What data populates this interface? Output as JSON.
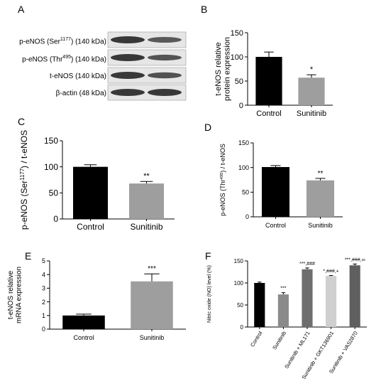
{
  "panel_labels": [
    "A",
    "B",
    "C",
    "D",
    "E",
    "F"
  ],
  "blot": {
    "rows": [
      {
        "pre": "p-eNOS (Ser",
        "sup": "1177",
        "post": ") (140 kDa)"
      },
      {
        "pre": "p-eNOS (Thr",
        "sup": "495",
        "post": ") (140 kDa)"
      },
      {
        "pre": "t-eNOS (140 kDa)",
        "sup": "",
        "post": ""
      },
      {
        "pre": "β-actin (48 kDa)",
        "sup": "",
        "post": ""
      }
    ],
    "band_intensity": [
      [
        1.0,
        0.6
      ],
      [
        1.0,
        0.65
      ],
      [
        1.0,
        0.7
      ],
      [
        1.0,
        1.0
      ]
    ]
  },
  "chart_data": [
    {
      "id": "B",
      "type": "bar",
      "categories": [
        "Control",
        "Sunitinib"
      ],
      "values": [
        100,
        57
      ],
      "errors": [
        10,
        6
      ],
      "significance": [
        "",
        "*"
      ],
      "ylabel": "t-eNOS relative protein expression",
      "ylabel_lines": [
        "t-eNOS relative",
        "protein expression"
      ],
      "ylim": [
        0,
        150
      ],
      "yticks": [
        "0",
        "50",
        "100",
        "150"
      ],
      "colors": [
        "#000000",
        "#9e9e9e"
      ]
    },
    {
      "id": "C",
      "type": "bar",
      "categories": [
        "Control",
        "Sunitinib"
      ],
      "values": [
        100,
        68
      ],
      "errors": [
        4,
        4
      ],
      "significance": [
        "",
        "**"
      ],
      "ylabel": "p-eNOS (Ser1177) / t-eNOS",
      "ylabel_parts": {
        "pre": "p-eNOS (Ser",
        "sup": "1177",
        "post": ") / t-eNOS"
      },
      "ylim": [
        0,
        150
      ],
      "yticks": [
        "0",
        "50",
        "100",
        "150"
      ],
      "colors": [
        "#000000",
        "#9e9e9e"
      ]
    },
    {
      "id": "D",
      "type": "bar",
      "categories": [
        "Control",
        "Sunitinib"
      ],
      "values": [
        101,
        74
      ],
      "errors": [
        3,
        4
      ],
      "significance": [
        "",
        "**"
      ],
      "ylabel": "p-eNOS (Thr495) / t-eNOS",
      "ylabel_parts": {
        "pre": "p-eNOS (Thr",
        "sup": "495",
        "post": ") / t-eNOS"
      },
      "ylim": [
        0,
        150
      ],
      "yticks": [
        "0",
        "50",
        "100",
        "150"
      ],
      "colors": [
        "#000000",
        "#9e9e9e"
      ]
    },
    {
      "id": "E",
      "type": "bar",
      "categories": [
        "Control",
        "Sunitinib"
      ],
      "values": [
        1.0,
        3.5
      ],
      "errors": [
        0.1,
        0.55
      ],
      "significance": [
        "",
        "***"
      ],
      "ylabel": "t-eNOS relative mRNA expression",
      "ylabel_lines": [
        "t-eNOS relative",
        "mRNA expression"
      ],
      "ylim": [
        0,
        5
      ],
      "yticks": [
        "0",
        "1",
        "2",
        "3",
        "4",
        "5"
      ],
      "colors": [
        "#000000",
        "#9e9e9e"
      ]
    },
    {
      "id": "F",
      "type": "bar",
      "categories": [
        "Control",
        "Sunitinib",
        "Sunitinib + ML171",
        "Sunitinib + GKT136901",
        "Sunitinib + VAS2870"
      ],
      "values": [
        100,
        74,
        131,
        116,
        140
      ],
      "errors": [
        2,
        4,
        3,
        1,
        3
      ],
      "significance": [
        "",
        "***",
        "***,###",
        "*,###,+",
        "***,###,∞"
      ],
      "ylabel": "Nitric oxide (NO) level (%)",
      "ylim": [
        0,
        150
      ],
      "yticks": [
        "0",
        "50",
        "100",
        "150"
      ],
      "colors": [
        "#000000",
        "#8a8a8a",
        "#6e6e6e",
        "#cfcfcf",
        "#5f5f5f"
      ]
    }
  ]
}
